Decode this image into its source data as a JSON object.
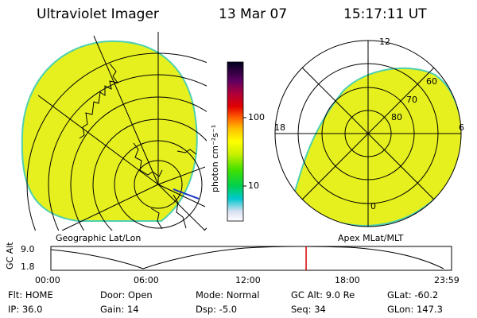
{
  "header": {
    "instrument": "Ultraviolet Imager",
    "date": "13 Mar 07",
    "time": "15:17:11 UT"
  },
  "colors": {
    "aurora_fill": "#e6f01e",
    "aurora_edge": "#4fd0b0",
    "timeline_marker": "#d40000"
  },
  "left_panel": {
    "caption": "Geographic Lat/Lon"
  },
  "right_panel": {
    "caption": "Apex MLat/MLT",
    "mlt_labels": {
      "top": "12",
      "left": "18",
      "right": "6",
      "bottom": "0"
    },
    "lat_labels": [
      "60",
      "70",
      "80"
    ]
  },
  "colorbar": {
    "unit_label": "photon cm⁻²s⁻¹",
    "tick_100": "100",
    "tick_10": "10"
  },
  "timeline": {
    "axis_label": "GC Alt",
    "y_max": "9.0",
    "y_min": "1.8",
    "x_ticks": [
      "00:00",
      "06:00",
      "12:00",
      "18:00",
      "23:59"
    ],
    "marker_fraction": 0.637
  },
  "status": {
    "flt": "Flt: HOME",
    "ip": "IP: 36.0",
    "door": "Door: Open",
    "gain": "Gain: 14",
    "mode": "Mode: Normal",
    "dsp": "Dsp:    -5.0",
    "gc_alt": "GC Alt: 9.0 Re",
    "seq": "Seq: 34",
    "glat": "GLat: -60.2",
    "glon": "GLon: 147.3"
  }
}
